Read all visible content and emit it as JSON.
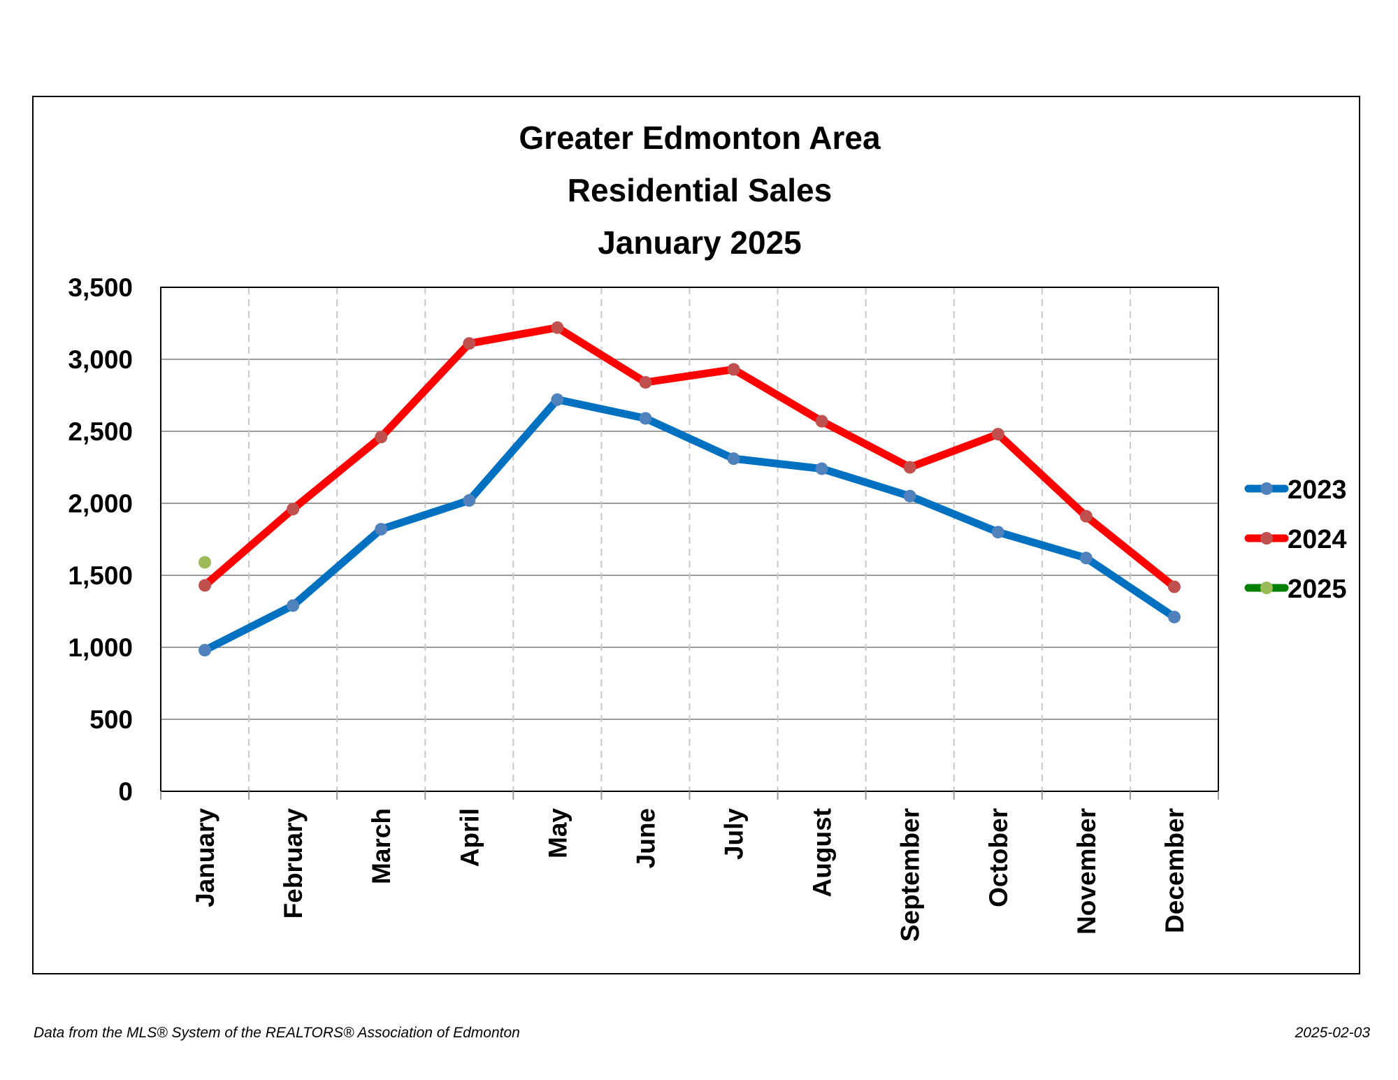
{
  "chart_data": {
    "type": "line",
    "title": [
      "Greater Edmonton Area",
      "Residential Sales",
      "January 2025"
    ],
    "xlabel": "",
    "ylabel": "",
    "categories": [
      "January",
      "February",
      "March",
      "April",
      "May",
      "June",
      "July",
      "August",
      "September",
      "October",
      "November",
      "December"
    ],
    "ylim": [
      0,
      3500
    ],
    "yticks": [
      0,
      500,
      1000,
      1500,
      2000,
      2500,
      3000,
      3500
    ],
    "ytick_labels": [
      "0",
      "500",
      "1,000",
      "1,500",
      "2,000",
      "2,500",
      "3,000",
      "3,500"
    ],
    "grid": {
      "horizontal": true,
      "vertical": "dashed"
    },
    "legend_position": "right",
    "series": [
      {
        "name": "2023",
        "line_color": "#0070C0",
        "marker_color": "#4F81BD",
        "values": [
          980,
          1290,
          1820,
          2020,
          2720,
          2590,
          2310,
          2240,
          2050,
          1800,
          1620,
          1210
        ]
      },
      {
        "name": "2024",
        "line_color": "#FF0000",
        "marker_color": "#C0504D",
        "values": [
          1430,
          1960,
          2460,
          3110,
          3220,
          2840,
          2930,
          2570,
          2250,
          2480,
          1910,
          1420
        ]
      },
      {
        "name": "2025",
        "line_color": "#008000",
        "marker_color": "#9BBB59",
        "values": [
          1590,
          null,
          null,
          null,
          null,
          null,
          null,
          null,
          null,
          null,
          null,
          null
        ]
      }
    ]
  },
  "footer": {
    "source": "Data from the MLS® System of the REALTORS® Association of Edmonton",
    "date": "2025-02-03"
  }
}
